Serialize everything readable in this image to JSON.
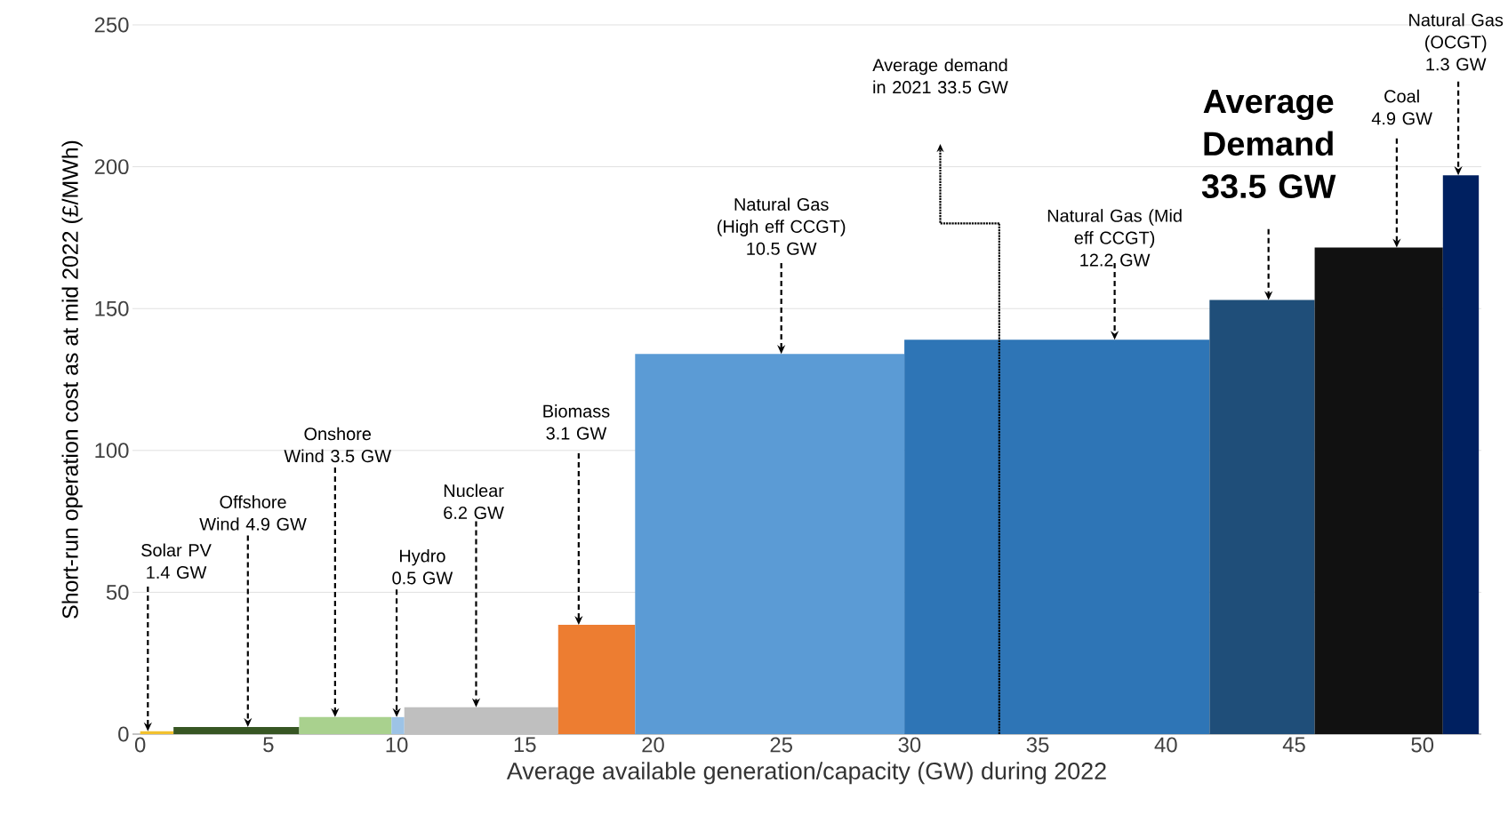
{
  "chart_data": {
    "type": "area",
    "xlabel": "Average available generation/capacity (GW) during 2022",
    "ylabel": "Short-run operation cost as at  mid 2022 (£/MWh)",
    "xlim": [
      -0.3,
      52.3
    ],
    "ylim": [
      0,
      250
    ],
    "xticks": [
      0,
      5,
      10,
      15,
      20,
      25,
      30,
      35,
      40,
      45,
      50
    ],
    "yticks": [
      0,
      50,
      100,
      150,
      200,
      250
    ],
    "grid": "y",
    "series": [
      {
        "x": [
          0,
          1.3
        ],
        "values": [
          1,
          1
        ],
        "color": "#f2c12e"
      },
      {
        "x": [
          1.3,
          6.2
        ],
        "values": [
          2.5,
          2.5
        ],
        "color": "#375623"
      },
      {
        "x": [
          6.2,
          9.8
        ],
        "values": [
          6,
          6
        ],
        "color": "#a9d18e"
      },
      {
        "x": [
          9.8,
          10.3
        ],
        "values": [
          6,
          6
        ],
        "color": "#9dc3e6"
      },
      {
        "x": [
          10.3,
          16.3
        ],
        "values": [
          9.5,
          9.5
        ],
        "color": "#bfbfbf"
      },
      {
        "x": [
          16.3,
          19.3
        ],
        "values": [
          38.5,
          38.5
        ],
        "color": "#ed7d31"
      },
      {
        "x": [
          19.3,
          29.8
        ],
        "values": [
          134,
          134
        ],
        "color": "#5b9bd5"
      },
      {
        "x": [
          29.8,
          41.7
        ],
        "values": [
          139,
          139
        ],
        "color": "#2e75b6"
      },
      {
        "x": [
          41.7,
          45.8
        ],
        "values": [
          153,
          153
        ],
        "color": "#1f4e79"
      },
      {
        "x": [
          45.8,
          50.8
        ],
        "values": [
          171.5,
          171.5
        ],
        "color": "#111111"
      },
      {
        "x": [
          50.8,
          52.2
        ],
        "values": [
          197,
          197
        ],
        "color": "#002060"
      }
    ],
    "ref_lines": [
      {
        "axis": "x",
        "value": 33.5,
        "label": "Average demand in 2021 33.5 GW",
        "line_style": "dotted"
      }
    ],
    "annotations": [
      {
        "text": "Solar PV 1.4 GW",
        "x": 0.3,
        "y": 1
      },
      {
        "text": "Offshore Wind 4.9 GW",
        "x": 4.2,
        "y": 2.5
      },
      {
        "text": "Onshore Wind 3.5 GW",
        "x": 7.6,
        "y": 6
      },
      {
        "text": "Hydro 0.5 GW",
        "x": 10,
        "y": 6
      },
      {
        "text": "Nuclear 6.2 GW",
        "x": 13.1,
        "y": 9.5
      },
      {
        "text": "Biomass 3.1 GW",
        "x": 17.1,
        "y": 38.5
      },
      {
        "text": "Natural Gas (High eff CCGT) 10.5 GW",
        "x": 25,
        "y": 134
      },
      {
        "text": "Natural Gas (Mid eff CCGT) 12.2 GW",
        "x": 38,
        "y": 139
      },
      {
        "text": "Average Demand 33.5 GW",
        "x": 44,
        "y": 153
      },
      {
        "text": "Coal 4.9 GW",
        "x": 49,
        "y": 171.5
      },
      {
        "text": "Natural Gas (OCGT) 1.3 GW",
        "x": 51.4,
        "y": 197
      }
    ]
  }
}
